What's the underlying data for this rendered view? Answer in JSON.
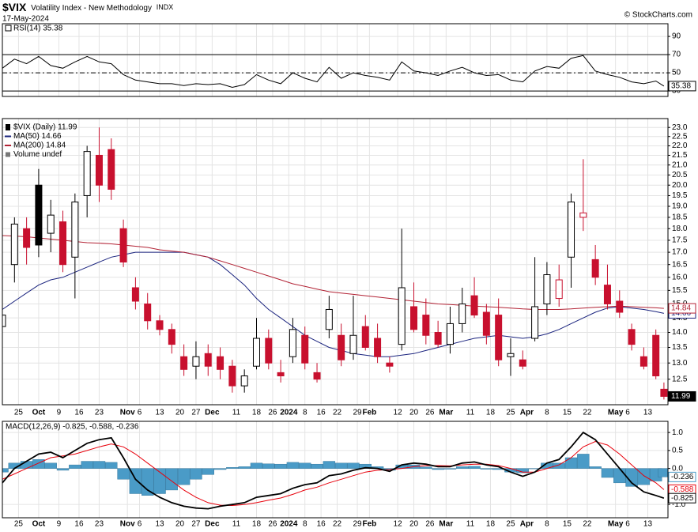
{
  "header": {
    "symbol": "$VIX",
    "name": "Volatility Index - New Methodology",
    "exchange": "INDX",
    "date": "17-May-2024",
    "credit": "© StockCharts.com"
  },
  "chart_data": [
    {
      "type": "line",
      "label": "RSI(14) 35.38",
      "x": [
        0,
        3,
        6,
        9,
        12,
        15,
        18,
        21,
        24,
        27,
        30,
        33,
        36,
        39,
        42,
        45,
        48,
        51,
        54,
        57,
        60,
        63,
        66,
        69,
        72,
        75,
        78,
        81,
        84,
        87,
        90,
        93,
        96,
        99,
        102,
        105,
        108,
        111,
        114,
        117,
        120,
        123,
        126,
        129,
        132,
        135,
        138,
        141,
        144,
        147,
        150,
        153,
        156,
        159,
        162,
        164
      ],
      "xlim": [
        0,
        165
      ],
      "ylim": [
        24,
        104
      ],
      "yticks": [
        90,
        70,
        50,
        30
      ],
      "reference_lines": [
        70,
        30
      ],
      "midline": 50,
      "grid": true,
      "series": [
        {
          "color": "#000000",
          "values": [
            55,
            65,
            60,
            68,
            58,
            55,
            62,
            68,
            62,
            60,
            48,
            42,
            40,
            38,
            38,
            36,
            38,
            37,
            38,
            34,
            37,
            48,
            42,
            38,
            50,
            44,
            40,
            56,
            44,
            50,
            47,
            45,
            42,
            62,
            52,
            50,
            47,
            52,
            56,
            50,
            47,
            48,
            42,
            40,
            52,
            57,
            55,
            66,
            69,
            52,
            48,
            45,
            40,
            38,
            41,
            35.38
          ]
        }
      ]
    },
    {
      "type": "candlestick",
      "log_scale": true,
      "grid": true,
      "up_color": "#000000",
      "down_color": "#c8102e",
      "legend": [
        "$VIX (Daily) 11.99",
        "MA(50) 14.66",
        "MA(200) 14.84",
        "Volume undef"
      ],
      "x": [
        0,
        3,
        6,
        9,
        12,
        15,
        18,
        21,
        24,
        27,
        30,
        33,
        36,
        39,
        42,
        45,
        48,
        51,
        54,
        57,
        60,
        63,
        66,
        69,
        72,
        75,
        78,
        81,
        84,
        87,
        90,
        93,
        96,
        99,
        102,
        105,
        108,
        111,
        114,
        117,
        120,
        123,
        126,
        129,
        132,
        135,
        138,
        141,
        144,
        147,
        150,
        153,
        156,
        159,
        162,
        164
      ],
      "open": [
        14.2,
        16.5,
        18,
        20,
        17.8,
        18.3,
        16.8,
        19.5,
        21.5,
        21.8,
        18,
        15.6,
        15,
        14.4,
        14.1,
        13.2,
        12.9,
        13.3,
        13.2,
        12.9,
        12.3,
        12.9,
        13.8,
        12.7,
        13.2,
        13.9,
        12.7,
        14.1,
        13.9,
        13.3,
        14.2,
        13.8,
        13,
        13.6,
        14.9,
        14.6,
        14,
        13.6,
        14.3,
        15.3,
        14.7,
        14.6,
        13.2,
        13.1,
        13.8,
        15,
        15.2,
        16.8,
        18.5,
        16.7,
        15.7,
        15.1,
        14.1,
        13.2,
        13.9,
        12.2
      ],
      "high": [
        14.8,
        18.5,
        18.5,
        20.8,
        19.3,
        18.8,
        19.6,
        22,
        23,
        22.4,
        18.4,
        16,
        15.4,
        14.6,
        14.3,
        13.6,
        13.7,
        13.6,
        13.5,
        13.1,
        12.8,
        14.5,
        14.1,
        13.1,
        14.5,
        14.2,
        13,
        15.3,
        14.3,
        15.3,
        14.6,
        14.3,
        13.2,
        18,
        15.8,
        15.2,
        14.4,
        14.9,
        15.6,
        16,
        15,
        15.2,
        13.8,
        13.4,
        16.8,
        16.6,
        16.5,
        19.6,
        21.3,
        17.3,
        16.5,
        15.5,
        14.3,
        13.5,
        14.1,
        12.4
      ],
      "low": [
        13.5,
        15.8,
        16.5,
        16.8,
        17,
        16.2,
        15.2,
        18.5,
        19.2,
        19.3,
        16.4,
        14.8,
        14.1,
        13.9,
        13.3,
        12.6,
        12.5,
        12.6,
        12.5,
        12.1,
        12.1,
        12.8,
        12.8,
        12.4,
        13,
        12.8,
        12.4,
        13.8,
        12.9,
        13.1,
        13.4,
        13,
        12.7,
        13.4,
        14,
        13.6,
        13.5,
        13.3,
        14,
        14.5,
        13.6,
        12.9,
        12.6,
        12.8,
        13.7,
        14.6,
        14.9,
        15.6,
        17.9,
        15.7,
        14.8,
        14.5,
        13.4,
        12.8,
        12.5,
        11.9
      ],
      "close": [
        14.6,
        18.2,
        17.2,
        17.3,
        18.6,
        16.5,
        19.2,
        21.7,
        20,
        19.8,
        16.6,
        15.1,
        14.4,
        14.1,
        13.6,
        12.8,
        13.2,
        12.9,
        12.8,
        12.3,
        12.6,
        13.8,
        13,
        12.6,
        14.1,
        13,
        12.5,
        14.8,
        13.1,
        13.9,
        13.5,
        13.2,
        12.9,
        15.6,
        14.1,
        13.9,
        13.6,
        14.3,
        15,
        14.6,
        13.9,
        13.1,
        13.3,
        12.9,
        14.9,
        16.1,
        15.9,
        19.2,
        18.7,
        16,
        15,
        14.7,
        13.6,
        12.9,
        12.6,
        11.99
      ],
      "series": [
        {
          "color": "#1a237e",
          "values": [
            14.8,
            15.1,
            15.4,
            15.7,
            15.9,
            16.0,
            16.2,
            16.4,
            16.6,
            16.8,
            16.9,
            17.0,
            17.0,
            17.0,
            17.0,
            17.0,
            16.9,
            16.8,
            16.5,
            16.1,
            15.7,
            15.2,
            14.8,
            14.5,
            14.2,
            13.9,
            13.7,
            13.5,
            13.4,
            13.3,
            13.25,
            13.2,
            13.2,
            13.25,
            13.3,
            13.4,
            13.5,
            13.6,
            13.7,
            13.8,
            13.85,
            13.9,
            13.85,
            13.8,
            13.85,
            13.95,
            14.1,
            14.3,
            14.5,
            14.7,
            14.85,
            14.9,
            14.85,
            14.8,
            14.72,
            14.66
          ]
        },
        {
          "color": "#b22234",
          "values": [
            17.7,
            17.68,
            17.65,
            17.6,
            17.55,
            17.5,
            17.45,
            17.4,
            17.38,
            17.35,
            17.3,
            17.25,
            17.2,
            17.1,
            17.05,
            17.0,
            16.9,
            16.8,
            16.65,
            16.5,
            16.35,
            16.2,
            16.05,
            15.9,
            15.75,
            15.65,
            15.55,
            15.45,
            15.4,
            15.35,
            15.3,
            15.25,
            15.2,
            15.15,
            15.1,
            15.05,
            15.0,
            14.98,
            14.95,
            14.92,
            14.9,
            14.88,
            14.85,
            14.82,
            14.8,
            14.8,
            14.8,
            14.82,
            14.85,
            14.88,
            14.9,
            14.92,
            14.9,
            14.88,
            14.86,
            14.84
          ]
        }
      ],
      "xlim": [
        0,
        165
      ],
      "ylim": [
        11.75,
        23.5
      ],
      "yticks": [
        {
          "value": 23,
          "label": "23.0"
        },
        22.5,
        {
          "value": 22,
          "label": "22.0"
        },
        21.5,
        {
          "value": 21,
          "label": "21.0"
        },
        20.5,
        {
          "value": 20,
          "label": "20.0"
        },
        19.5,
        {
          "value": 19,
          "label": "19.0"
        },
        18.5,
        {
          "value": 18,
          "label": "18.0"
        },
        17.5,
        {
          "value": 17,
          "label": "17.0"
        },
        16.5,
        {
          "value": 16,
          "label": "16.0"
        },
        15.5,
        {
          "value": 15,
          "label": "15.0"
        },
        14.5,
        {
          "value": 14,
          "label": "14.0"
        },
        13.5,
        {
          "value": 13,
          "label": "13.0"
        },
        12.5
      ],
      "xticks": [
        {
          "value": 4,
          "label": "25"
        },
        {
          "value": 9,
          "label": "Oct"
        },
        {
          "value": 14,
          "label": "9"
        },
        {
          "value": 19,
          "label": "16"
        },
        {
          "value": 24,
          "label": "23"
        },
        {
          "value": 31,
          "label": "Nov"
        },
        {
          "value": 34,
          "label": "6"
        },
        {
          "value": 39,
          "label": "13"
        },
        {
          "value": 44,
          "label": "20"
        },
        {
          "value": 48,
          "label": "27"
        },
        {
          "value": 52,
          "label": "Dec"
        },
        {
          "value": 58,
          "label": "11"
        },
        {
          "value": 63,
          "label": "18"
        },
        {
          "value": 67,
          "label": "26"
        },
        {
          "value": 71,
          "label": "2024"
        },
        {
          "value": 75,
          "label": "8"
        },
        {
          "value": 79,
          "label": "16"
        },
        {
          "value": 83,
          "label": "22"
        },
        {
          "value": 88,
          "label": "29"
        },
        {
          "value": 91,
          "label": "Feb"
        },
        {
          "value": 98,
          "label": "12"
        },
        {
          "value": 102,
          "label": "20"
        },
        {
          "value": 106,
          "label": "26"
        },
        {
          "value": 110,
          "label": "Mar"
        },
        {
          "value": 116,
          "label": "11"
        },
        {
          "value": 121,
          "label": "18"
        },
        {
          "value": 126,
          "label": "25"
        },
        {
          "value": 130,
          "label": "Apr"
        },
        {
          "value": 135,
          "label": "8"
        },
        {
          "value": 140,
          "label": "15"
        },
        {
          "value": 145,
          "label": "22"
        },
        {
          "value": 152,
          "label": "May"
        },
        {
          "value": 155,
          "label": "6"
        },
        {
          "value": 160,
          "label": "13"
        }
      ]
    },
    {
      "type": "macd",
      "label": "MACD(12,26,9) -0.825, -0.588, -0.236",
      "grid": true,
      "x": [
        0,
        3,
        6,
        9,
        12,
        15,
        18,
        21,
        24,
        27,
        30,
        33,
        36,
        39,
        42,
        45,
        48,
        51,
        54,
        57,
        60,
        63,
        66,
        69,
        72,
        75,
        78,
        81,
        84,
        87,
        90,
        93,
        96,
        99,
        102,
        105,
        108,
        111,
        114,
        117,
        120,
        123,
        126,
        129,
        132,
        135,
        138,
        141,
        144,
        147,
        150,
        153,
        156,
        159,
        162,
        164
      ],
      "series": [
        {
          "color": "#4a9bc7",
          "style": "histogram",
          "values": [
            -0.1,
            0.15,
            0.2,
            0.25,
            0.15,
            -0.05,
            0.1,
            0.2,
            0.2,
            0.17,
            -0.3,
            -0.7,
            -0.75,
            -0.7,
            -0.6,
            -0.45,
            -0.3,
            -0.17,
            -0.03,
            0.03,
            0.05,
            0.15,
            0.13,
            0.12,
            0.17,
            0.15,
            0.12,
            0.2,
            0.15,
            0.15,
            0.12,
            0.05,
            -0.05,
            0.1,
            0.1,
            0.04,
            -0.03,
            -0.02,
            0.05,
            0.06,
            -0.02,
            -0.03,
            -0.1,
            -0.12,
            0,
            0.15,
            0.15,
            0.3,
            0.4,
            0.05,
            -0.25,
            -0.4,
            -0.5,
            -0.45,
            -0.35,
            -0.236
          ]
        },
        {
          "color": "#e8000b",
          "style": "line",
          "values": [
            -0.3,
            -0.15,
            0,
            0.15,
            0.3,
            0.35,
            0.4,
            0.5,
            0.6,
            0.68,
            0.6,
            0.4,
            0.15,
            -0.1,
            -0.35,
            -0.6,
            -0.8,
            -0.95,
            -1.02,
            -1.03,
            -1,
            -0.95,
            -0.88,
            -0.82,
            -0.72,
            -0.6,
            -0.52,
            -0.4,
            -0.3,
            -0.2,
            -0.1,
            -0.05,
            -0.03,
            0,
            0.05,
            0.08,
            0.08,
            0.07,
            0.1,
            0.12,
            0.12,
            0.08,
            0,
            -0.1,
            -0.1,
            0,
            0.1,
            0.3,
            0.6,
            0.75,
            0.65,
            0.4,
            0.1,
            -0.2,
            -0.4,
            -0.588
          ]
        },
        {
          "color": "#000000",
          "style": "line",
          "values": [
            -0.4,
            0,
            0.2,
            0.4,
            0.45,
            0.3,
            0.5,
            0.7,
            0.8,
            0.85,
            0.3,
            -0.3,
            -0.6,
            -0.8,
            -0.95,
            -1.05,
            -1.1,
            -1.12,
            -1.05,
            -1,
            -0.95,
            -0.8,
            -0.75,
            -0.7,
            -0.55,
            -0.45,
            -0.4,
            -0.2,
            -0.15,
            -0.05,
            0.02,
            0,
            -0.08,
            0.1,
            0.15,
            0.12,
            0.05,
            0.05,
            0.15,
            0.18,
            0.1,
            0.05,
            -0.1,
            -0.22,
            -0.1,
            0.15,
            0.25,
            0.6,
            1,
            0.8,
            0.4,
            0,
            -0.4,
            -0.65,
            -0.75,
            -0.825
          ]
        }
      ],
      "xlim": [
        0,
        165
      ],
      "ylim": [
        -1.37,
        1.31
      ],
      "yticks": [
        {
          "value": 1,
          "label": "1.0"
        },
        0.5,
        {
          "value": 0,
          "label": "0.0"
        },
        {
          "value": -1,
          "label": "-1.0"
        }
      ],
      "xticks": [
        {
          "value": 4,
          "label": "25"
        },
        {
          "value": 9,
          "label": "Oct"
        },
        {
          "value": 14,
          "label": "9"
        },
        {
          "value": 19,
          "label": "16"
        },
        {
          "value": 24,
          "label": "23"
        },
        {
          "value": 31,
          "label": "Nov"
        },
        {
          "value": 34,
          "label": "6"
        },
        {
          "value": 39,
          "label": "13"
        },
        {
          "value": 44,
          "label": "20"
        },
        {
          "value": 48,
          "label": "27"
        },
        {
          "value": 52,
          "label": "Dec"
        },
        {
          "value": 58,
          "label": "11"
        },
        {
          "value": 63,
          "label": "18"
        },
        {
          "value": 67,
          "label": "26"
        },
        {
          "value": 71,
          "label": "2024"
        },
        {
          "value": 75,
          "label": "8"
        },
        {
          "value": 79,
          "label": "16"
        },
        {
          "value": 83,
          "label": "22"
        },
        {
          "value": 88,
          "label": "29"
        },
        {
          "value": 91,
          "label": "Feb"
        },
        {
          "value": 98,
          "label": "12"
        },
        {
          "value": 102,
          "label": "20"
        },
        {
          "value": 106,
          "label": "26"
        },
        {
          "value": 110,
          "label": "Mar"
        },
        {
          "value": 116,
          "label": "11"
        },
        {
          "value": 121,
          "label": "18"
        },
        {
          "value": 126,
          "label": "25"
        },
        {
          "value": 130,
          "label": "Apr"
        },
        {
          "value": 135,
          "label": "8"
        },
        {
          "value": 140,
          "label": "15"
        },
        {
          "value": 145,
          "label": "22"
        },
        {
          "value": 152,
          "label": "May"
        },
        {
          "value": 155,
          "label": "6"
        },
        {
          "value": 160,
          "label": "13"
        }
      ]
    }
  ]
}
